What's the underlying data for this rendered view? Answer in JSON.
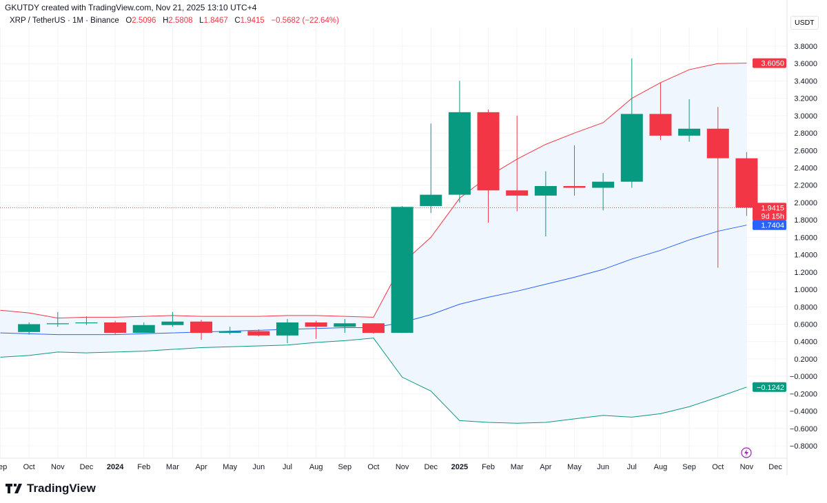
{
  "credit": "GKUTDY created with TradingView.com, Nov 21, 2025 13:10 UTC+4",
  "legend": {
    "symbol": "XRP / TetherUS · 1M · Binance",
    "o_label": "O",
    "o": "2.5096",
    "h_label": "H",
    "h": "2.5808",
    "l_label": "L",
    "l": "1.8467",
    "c_label": "C",
    "c": "1.9415",
    "change": "−0.5682 (−22.64%)"
  },
  "currency": "USDT",
  "logo_text": "TradingView",
  "colors": {
    "up": "#089981",
    "down": "#f23645",
    "basis": "#2962ff",
    "upper": "#f23645",
    "lower": "#089981",
    "fill": "#f0f6fd"
  },
  "chart_data": {
    "type": "candlestick",
    "ylim": [
      -0.8,
      3.8
    ],
    "yticks": [
      "3.8000",
      "3.6000",
      "3.4000",
      "3.2000",
      "3.0000",
      "2.8000",
      "2.6000",
      "2.4000",
      "2.2000",
      "2.0000",
      "1.8000",
      "1.6000",
      "1.4000",
      "1.2000",
      "1.0000",
      "0.8000",
      "0.6000",
      "0.4000",
      "0.2000",
      "−0.0000",
      "−0.2000",
      "−0.4000",
      "−0.6000",
      "−0.8000"
    ],
    "xticks": [
      "Sep",
      "Oct",
      "Nov",
      "Dec",
      "2024",
      "Feb",
      "Mar",
      "Apr",
      "May",
      "Jun",
      "Jul",
      "Aug",
      "Sep",
      "Oct",
      "Nov",
      "Dec",
      "2025",
      "Feb",
      "Mar",
      "Apr",
      "May",
      "Jun",
      "Jul",
      "Aug",
      "Sep",
      "Oct",
      "Nov",
      "Dec"
    ],
    "candles": [
      {
        "m": "2023-10",
        "o": 0.51,
        "h": 0.62,
        "l": 0.48,
        "c": 0.6
      },
      {
        "m": "2023-11",
        "o": 0.6,
        "h": 0.74,
        "l": 0.57,
        "c": 0.61
      },
      {
        "m": "2023-12",
        "o": 0.61,
        "h": 0.69,
        "l": 0.59,
        "c": 0.62
      },
      {
        "m": "2024-01",
        "o": 0.62,
        "h": 0.64,
        "l": 0.48,
        "c": 0.5
      },
      {
        "m": "2024-02",
        "o": 0.5,
        "h": 0.62,
        "l": 0.5,
        "c": 0.59
      },
      {
        "m": "2024-03",
        "o": 0.59,
        "h": 0.74,
        "l": 0.57,
        "c": 0.63
      },
      {
        "m": "2024-04",
        "o": 0.63,
        "h": 0.65,
        "l": 0.42,
        "c": 0.5
      },
      {
        "m": "2024-05",
        "o": 0.5,
        "h": 0.57,
        "l": 0.48,
        "c": 0.52
      },
      {
        "m": "2024-06",
        "o": 0.52,
        "h": 0.54,
        "l": 0.46,
        "c": 0.47
      },
      {
        "m": "2024-07",
        "o": 0.47,
        "h": 0.66,
        "l": 0.38,
        "c": 0.62
      },
      {
        "m": "2024-08",
        "o": 0.62,
        "h": 0.64,
        "l": 0.43,
        "c": 0.57
      },
      {
        "m": "2024-09",
        "o": 0.57,
        "h": 0.66,
        "l": 0.5,
        "c": 0.61
      },
      {
        "m": "2024-10",
        "o": 0.61,
        "h": 0.61,
        "l": 0.49,
        "c": 0.5
      },
      {
        "m": "2024-11",
        "o": 0.5,
        "h": 1.96,
        "l": 0.5,
        "c": 1.95
      },
      {
        "m": "2024-12",
        "o": 1.96,
        "h": 2.91,
        "l": 1.88,
        "c": 2.09
      },
      {
        "m": "2025-01",
        "o": 2.09,
        "h": 3.4,
        "l": 2.0,
        "c": 3.04
      },
      {
        "m": "2025-02",
        "o": 3.04,
        "h": 3.07,
        "l": 1.77,
        "c": 2.14
      },
      {
        "m": "2025-03",
        "o": 2.14,
        "h": 3.0,
        "l": 1.9,
        "c": 2.08
      },
      {
        "m": "2025-04",
        "o": 2.08,
        "h": 2.36,
        "l": 1.61,
        "c": 2.19
      },
      {
        "m": "2025-05",
        "o": 2.19,
        "h": 2.66,
        "l": 2.08,
        "c": 2.17
      },
      {
        "m": "2025-06",
        "o": 2.17,
        "h": 2.34,
        "l": 1.91,
        "c": 2.24
      },
      {
        "m": "2025-07",
        "o": 2.24,
        "h": 3.66,
        "l": 2.17,
        "c": 3.02
      },
      {
        "m": "2025-08",
        "o": 3.02,
        "h": 3.38,
        "l": 2.72,
        "c": 2.77
      },
      {
        "m": "2025-09",
        "o": 2.77,
        "h": 3.19,
        "l": 2.7,
        "c": 2.85
      },
      {
        "m": "2025-10",
        "o": 2.85,
        "h": 3.1,
        "l": 1.25,
        "c": 2.51
      },
      {
        "m": "2025-11",
        "o": 2.5096,
        "h": 2.5808,
        "l": 1.8467,
        "c": 1.9415
      }
    ],
    "bands_start": "2023-09",
    "upper": [
      0.76,
      0.73,
      0.67,
      0.68,
      0.68,
      0.69,
      0.7,
      0.69,
      0.69,
      0.69,
      0.7,
      0.7,
      0.69,
      0.68,
      1.3,
      1.6,
      2.05,
      2.3,
      2.5,
      2.67,
      2.8,
      2.92,
      3.2,
      3.38,
      3.53,
      3.6,
      3.605
    ],
    "basis": [
      0.5,
      0.49,
      0.48,
      0.48,
      0.48,
      0.49,
      0.5,
      0.51,
      0.52,
      0.53,
      0.54,
      0.55,
      0.56,
      0.56,
      0.62,
      0.71,
      0.83,
      0.91,
      0.98,
      1.06,
      1.14,
      1.23,
      1.35,
      1.45,
      1.57,
      1.67,
      1.7404
    ],
    "lower": [
      0.22,
      0.24,
      0.28,
      0.27,
      0.28,
      0.29,
      0.31,
      0.33,
      0.34,
      0.35,
      0.36,
      0.39,
      0.41,
      0.44,
      -0.01,
      -0.17,
      -0.51,
      -0.53,
      -0.54,
      -0.53,
      -0.49,
      -0.45,
      -0.47,
      -0.43,
      -0.35,
      -0.24,
      -0.1242
    ],
    "price_tags": [
      {
        "value": 3.605,
        "label": "3.6050",
        "color": "#f23645"
      },
      {
        "value": 1.9415,
        "label": "1.9415",
        "sub": "9d 15h",
        "color": "#f23645"
      },
      {
        "value": 1.7404,
        "label": "1.7404",
        "color": "#2962ff"
      },
      {
        "value": -0.1242,
        "label": "−0.1242",
        "color": "#089981"
      }
    ]
  }
}
